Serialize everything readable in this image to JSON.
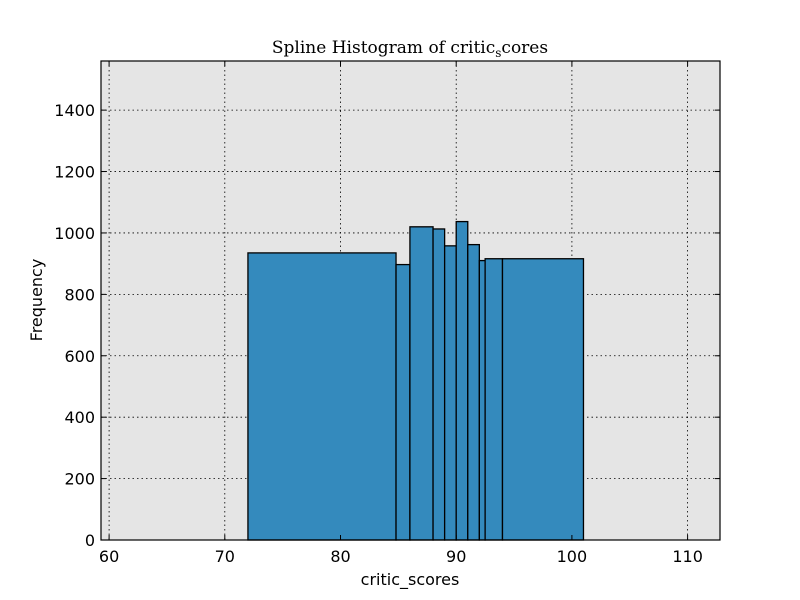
{
  "chart_data": {
    "type": "bar",
    "title": "Spline Histogram of critic",
    "title_subscript": "s",
    "title_suffix": "cores",
    "xlabel": "critic_scores",
    "ylabel": "Frequency",
    "xlim": [
      59.3,
      112.8
    ],
    "ylim": [
      0,
      1560
    ],
    "xticks": [
      60,
      70,
      80,
      90,
      100,
      110
    ],
    "yticks": [
      0,
      200,
      400,
      600,
      800,
      1000,
      1200,
      1400
    ],
    "grid": true,
    "bins": [
      {
        "x0": 72.0,
        "x1": 84.8,
        "value": 935
      },
      {
        "x0": 84.8,
        "x1": 86.0,
        "value": 897
      },
      {
        "x0": 86.0,
        "x1": 88.0,
        "value": 1020
      },
      {
        "x0": 88.0,
        "x1": 89.0,
        "value": 1013
      },
      {
        "x0": 89.0,
        "x1": 90.0,
        "value": 958
      },
      {
        "x0": 90.0,
        "x1": 91.0,
        "value": 1037
      },
      {
        "x0": 91.0,
        "x1": 92.0,
        "value": 962
      },
      {
        "x0": 92.0,
        "x1": 92.5,
        "value": 910
      },
      {
        "x0": 92.5,
        "x1": 94.0,
        "value": 916
      },
      {
        "x0": 94.0,
        "x1": 101.0,
        "value": 916
      }
    ],
    "colors": {
      "bar_fill": "#348abd",
      "bar_edge": "#000000",
      "plot_background": "#e5e5e5",
      "grid": "#000000"
    }
  }
}
